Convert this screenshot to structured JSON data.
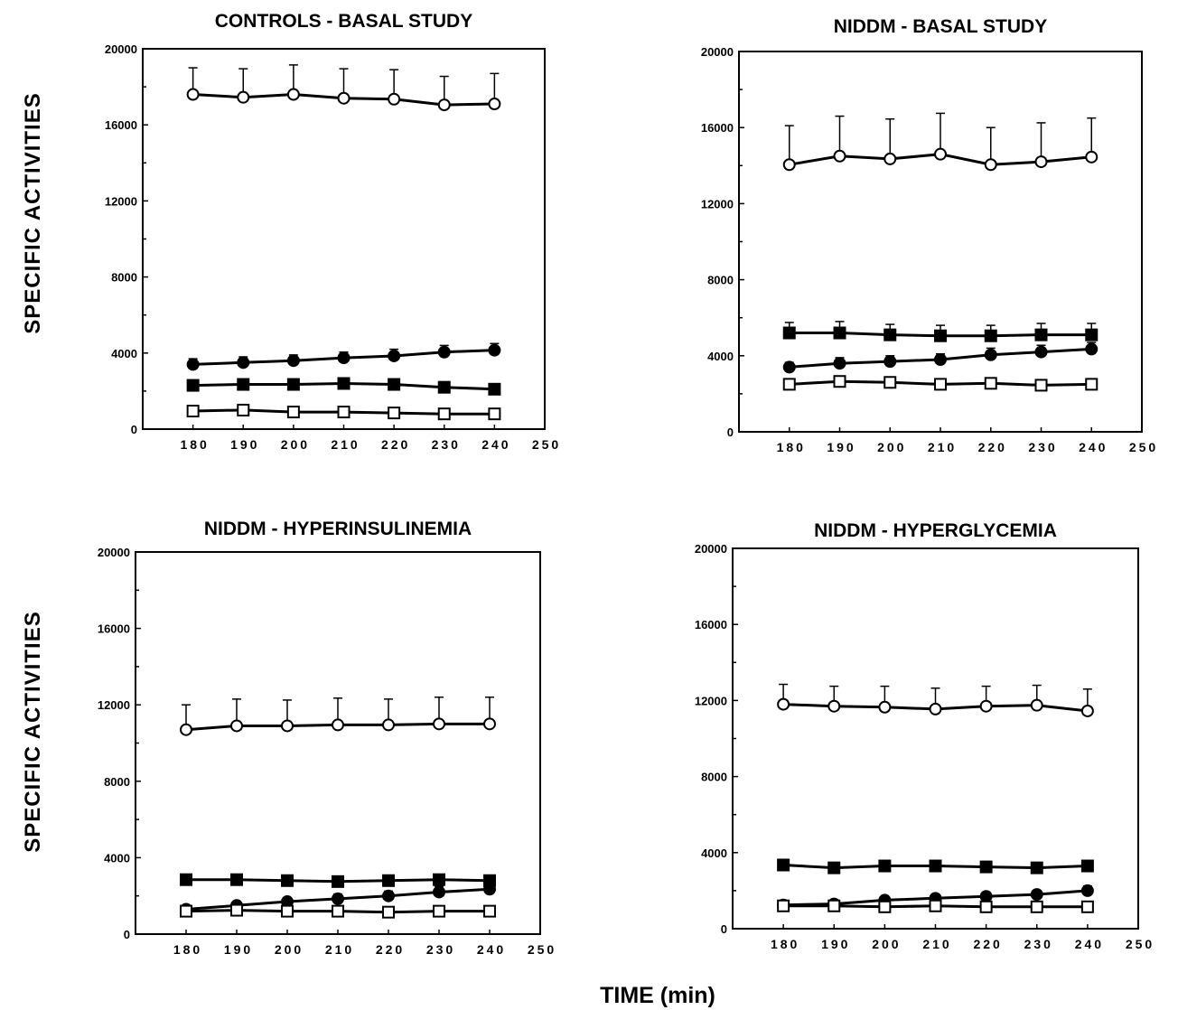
{
  "figure": {
    "ylabel": "SPECIFIC ACTIVITIES",
    "xlabel": "TIME (min)"
  },
  "chart_data": [
    {
      "type": "line",
      "title": "CONTROLS - BASAL STUDY",
      "xlim": [
        170,
        250
      ],
      "ylim": [
        0,
        20000
      ],
      "xticks": [
        180,
        190,
        200,
        210,
        220,
        230,
        240,
        250
      ],
      "yticks": [
        0,
        4000,
        8000,
        12000,
        16000,
        20000
      ],
      "x": [
        180,
        190,
        200,
        210,
        220,
        230,
        240
      ],
      "series": [
        {
          "marker": "open-circle",
          "values": [
            17600,
            17450,
            17600,
            17400,
            17350,
            17050,
            17100
          ],
          "errors": [
            1400,
            1500,
            1550,
            1550,
            1550,
            1500,
            1600
          ]
        },
        {
          "marker": "filled-circle",
          "values": [
            3400,
            3500,
            3600,
            3750,
            3850,
            4050,
            4150
          ],
          "errors": [
            300,
            300,
            300,
            300,
            350,
            350,
            350
          ]
        },
        {
          "marker": "filled-square",
          "values": [
            2300,
            2350,
            2350,
            2400,
            2350,
            2200,
            2100
          ],
          "errors": [
            150,
            150,
            150,
            150,
            150,
            150,
            150
          ]
        },
        {
          "marker": "open-square",
          "values": [
            950,
            1000,
            900,
            900,
            850,
            800,
            800
          ],
          "errors": [
            100,
            100,
            100,
            100,
            100,
            100,
            100
          ]
        }
      ]
    },
    {
      "type": "line",
      "title": "NIDDM - BASAL STUDY",
      "xlim": [
        170,
        250
      ],
      "ylim": [
        0,
        20000
      ],
      "xticks": [
        180,
        190,
        200,
        210,
        220,
        230,
        240,
        250
      ],
      "yticks": [
        0,
        4000,
        8000,
        12000,
        16000,
        20000
      ],
      "x": [
        180,
        190,
        200,
        210,
        220,
        230,
        240
      ],
      "series": [
        {
          "marker": "open-circle",
          "values": [
            14050,
            14500,
            14350,
            14600,
            14050,
            14200,
            14450
          ],
          "errors": [
            2050,
            2100,
            2100,
            2150,
            1950,
            2050,
            2050
          ]
        },
        {
          "marker": "filled-circle",
          "values": [
            3400,
            3600,
            3700,
            3800,
            4050,
            4200,
            4350
          ],
          "errors": [
            250,
            300,
            300,
            300,
            350,
            350,
            350
          ]
        },
        {
          "marker": "filled-square",
          "values": [
            5200,
            5200,
            5100,
            5050,
            5050,
            5100,
            5100
          ],
          "errors": [
            550,
            600,
            550,
            550,
            550,
            600,
            600
          ]
        },
        {
          "marker": "open-square",
          "values": [
            2500,
            2650,
            2600,
            2500,
            2550,
            2450,
            2500
          ],
          "errors": [
            150,
            200,
            150,
            150,
            150,
            150,
            150
          ]
        }
      ]
    },
    {
      "type": "line",
      "title": "NIDDM - HYPERINSULINEMIA",
      "xlim": [
        170,
        250
      ],
      "ylim": [
        0,
        20000
      ],
      "xticks": [
        180,
        190,
        200,
        210,
        220,
        230,
        240,
        250
      ],
      "yticks": [
        0,
        4000,
        8000,
        12000,
        16000,
        20000
      ],
      "x": [
        180,
        190,
        200,
        210,
        220,
        230,
        240
      ],
      "series": [
        {
          "marker": "open-circle",
          "values": [
            10700,
            10900,
            10900,
            10950,
            10950,
            11000,
            11000
          ],
          "errors": [
            1300,
            1400,
            1350,
            1400,
            1350,
            1400,
            1400
          ]
        },
        {
          "marker": "filled-circle",
          "values": [
            1300,
            1500,
            1700,
            1850,
            2000,
            2200,
            2350
          ],
          "errors": [
            150,
            200,
            200,
            250,
            250,
            300,
            300
          ]
        },
        {
          "marker": "filled-square",
          "values": [
            2850,
            2850,
            2800,
            2750,
            2800,
            2850,
            2800
          ],
          "errors": [
            150,
            150,
            150,
            150,
            150,
            150,
            150
          ]
        },
        {
          "marker": "open-square",
          "values": [
            1200,
            1250,
            1200,
            1200,
            1150,
            1200,
            1200
          ],
          "errors": [
            80,
            80,
            80,
            80,
            80,
            80,
            80
          ]
        }
      ]
    },
    {
      "type": "line",
      "title": "NIDDM - HYPERGLYCEMIA",
      "xlim": [
        170,
        250
      ],
      "ylim": [
        0,
        20000
      ],
      "xticks": [
        180,
        190,
        200,
        210,
        220,
        230,
        240,
        250
      ],
      "yticks": [
        0,
        4000,
        8000,
        12000,
        16000,
        20000
      ],
      "x": [
        180,
        190,
        200,
        210,
        220,
        230,
        240
      ],
      "series": [
        {
          "marker": "open-circle",
          "values": [
            11800,
            11700,
            11650,
            11550,
            11700,
            11750,
            11450
          ],
          "errors": [
            1050,
            1050,
            1100,
            1100,
            1050,
            1050,
            1150
          ]
        },
        {
          "marker": "filled-circle",
          "values": [
            1250,
            1300,
            1500,
            1600,
            1700,
            1800,
            2000
          ],
          "errors": [
            150,
            150,
            150,
            150,
            200,
            200,
            250
          ]
        },
        {
          "marker": "filled-square",
          "values": [
            3350,
            3200,
            3300,
            3300,
            3250,
            3200,
            3300
          ],
          "errors": [
            250,
            150,
            200,
            200,
            150,
            150,
            200
          ]
        },
        {
          "marker": "open-square",
          "values": [
            1200,
            1200,
            1150,
            1200,
            1150,
            1150,
            1150
          ],
          "errors": [
            80,
            80,
            80,
            80,
            80,
            80,
            80
          ]
        }
      ]
    }
  ]
}
